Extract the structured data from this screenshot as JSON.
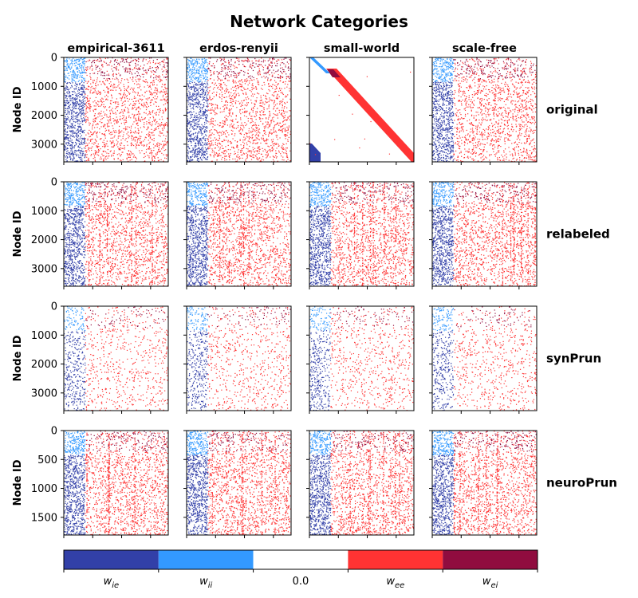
{
  "chart_data": {
    "type": "heatmap",
    "title": "Network Categories",
    "columns": [
      "empirical-3611",
      "erdos-renyii",
      "small-world",
      "scale-free"
    ],
    "rows": [
      {
        "label": "original",
        "ylabel": "Node ID",
        "ylim": [
          3611,
          0
        ],
        "yticks": [
          "0",
          "1000",
          "2000",
          "3000"
        ],
        "ytick_values": [
          0,
          1000,
          2000,
          3000
        ]
      },
      {
        "label": "relabeled",
        "ylabel": "Node ID",
        "ylim": [
          3611,
          0
        ],
        "yticks": [
          "0",
          "1000",
          "2000",
          "3000"
        ],
        "ytick_values": [
          0,
          1000,
          2000,
          3000
        ]
      },
      {
        "label": "synPrun",
        "ylabel": "Node ID",
        "ylim": [
          3611,
          0
        ],
        "yticks": [
          "0",
          "1000",
          "2000",
          "3000"
        ],
        "ytick_values": [
          0,
          1000,
          2000,
          3000
        ]
      },
      {
        "label": "neuroPrun",
        "ylabel": "Node ID",
        "ylim": [
          1806,
          0
        ],
        "yticks": [
          "0",
          "500",
          "1000",
          "1500"
        ],
        "ytick_values": [
          0,
          500,
          1000,
          1500
        ]
      }
    ],
    "colorbar": {
      "categories": [
        "w_ie",
        "w_ii",
        "0.0",
        "w_ee",
        "w_ei"
      ],
      "labels": [
        {
          "base": "w",
          "sub": "ie"
        },
        {
          "base": "w",
          "sub": "ii"
        },
        {
          "base": "0.0",
          "sub": ""
        },
        {
          "base": "w",
          "sub": "ee"
        },
        {
          "base": "w",
          "sub": "ei"
        }
      ],
      "colors": [
        "#3240a8",
        "#3399ff",
        "#ffffff",
        "#ff3333",
        "#900c3f"
      ]
    },
    "grid": false,
    "legend": "colorbar-bottom"
  }
}
